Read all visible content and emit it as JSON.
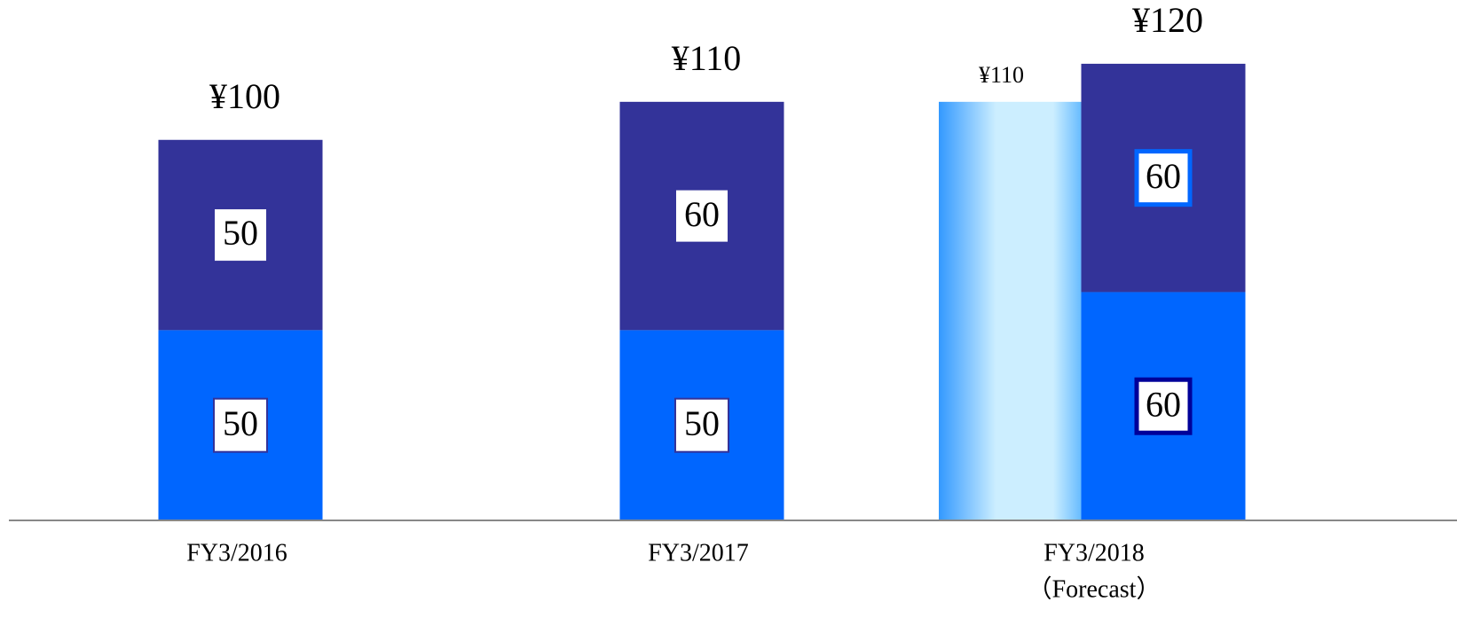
{
  "chart_data": {
    "type": "stacked_bar",
    "categories": [
      "FY3/2016",
      "FY3/2017",
      "FY3/2018"
    ],
    "category_note": "（Forecast）",
    "series": [
      {
        "color": "#0066ff",
        "values": [
          50,
          50,
          60
        ]
      },
      {
        "color": "#333399",
        "values": [
          50,
          60,
          60
        ]
      }
    ],
    "total_labels": [
      "¥100",
      "¥110",
      "¥120"
    ],
    "previous_forecast": {
      "value": 110,
      "label": "¥110"
    },
    "ylim": [
      0,
      130
    ]
  }
}
